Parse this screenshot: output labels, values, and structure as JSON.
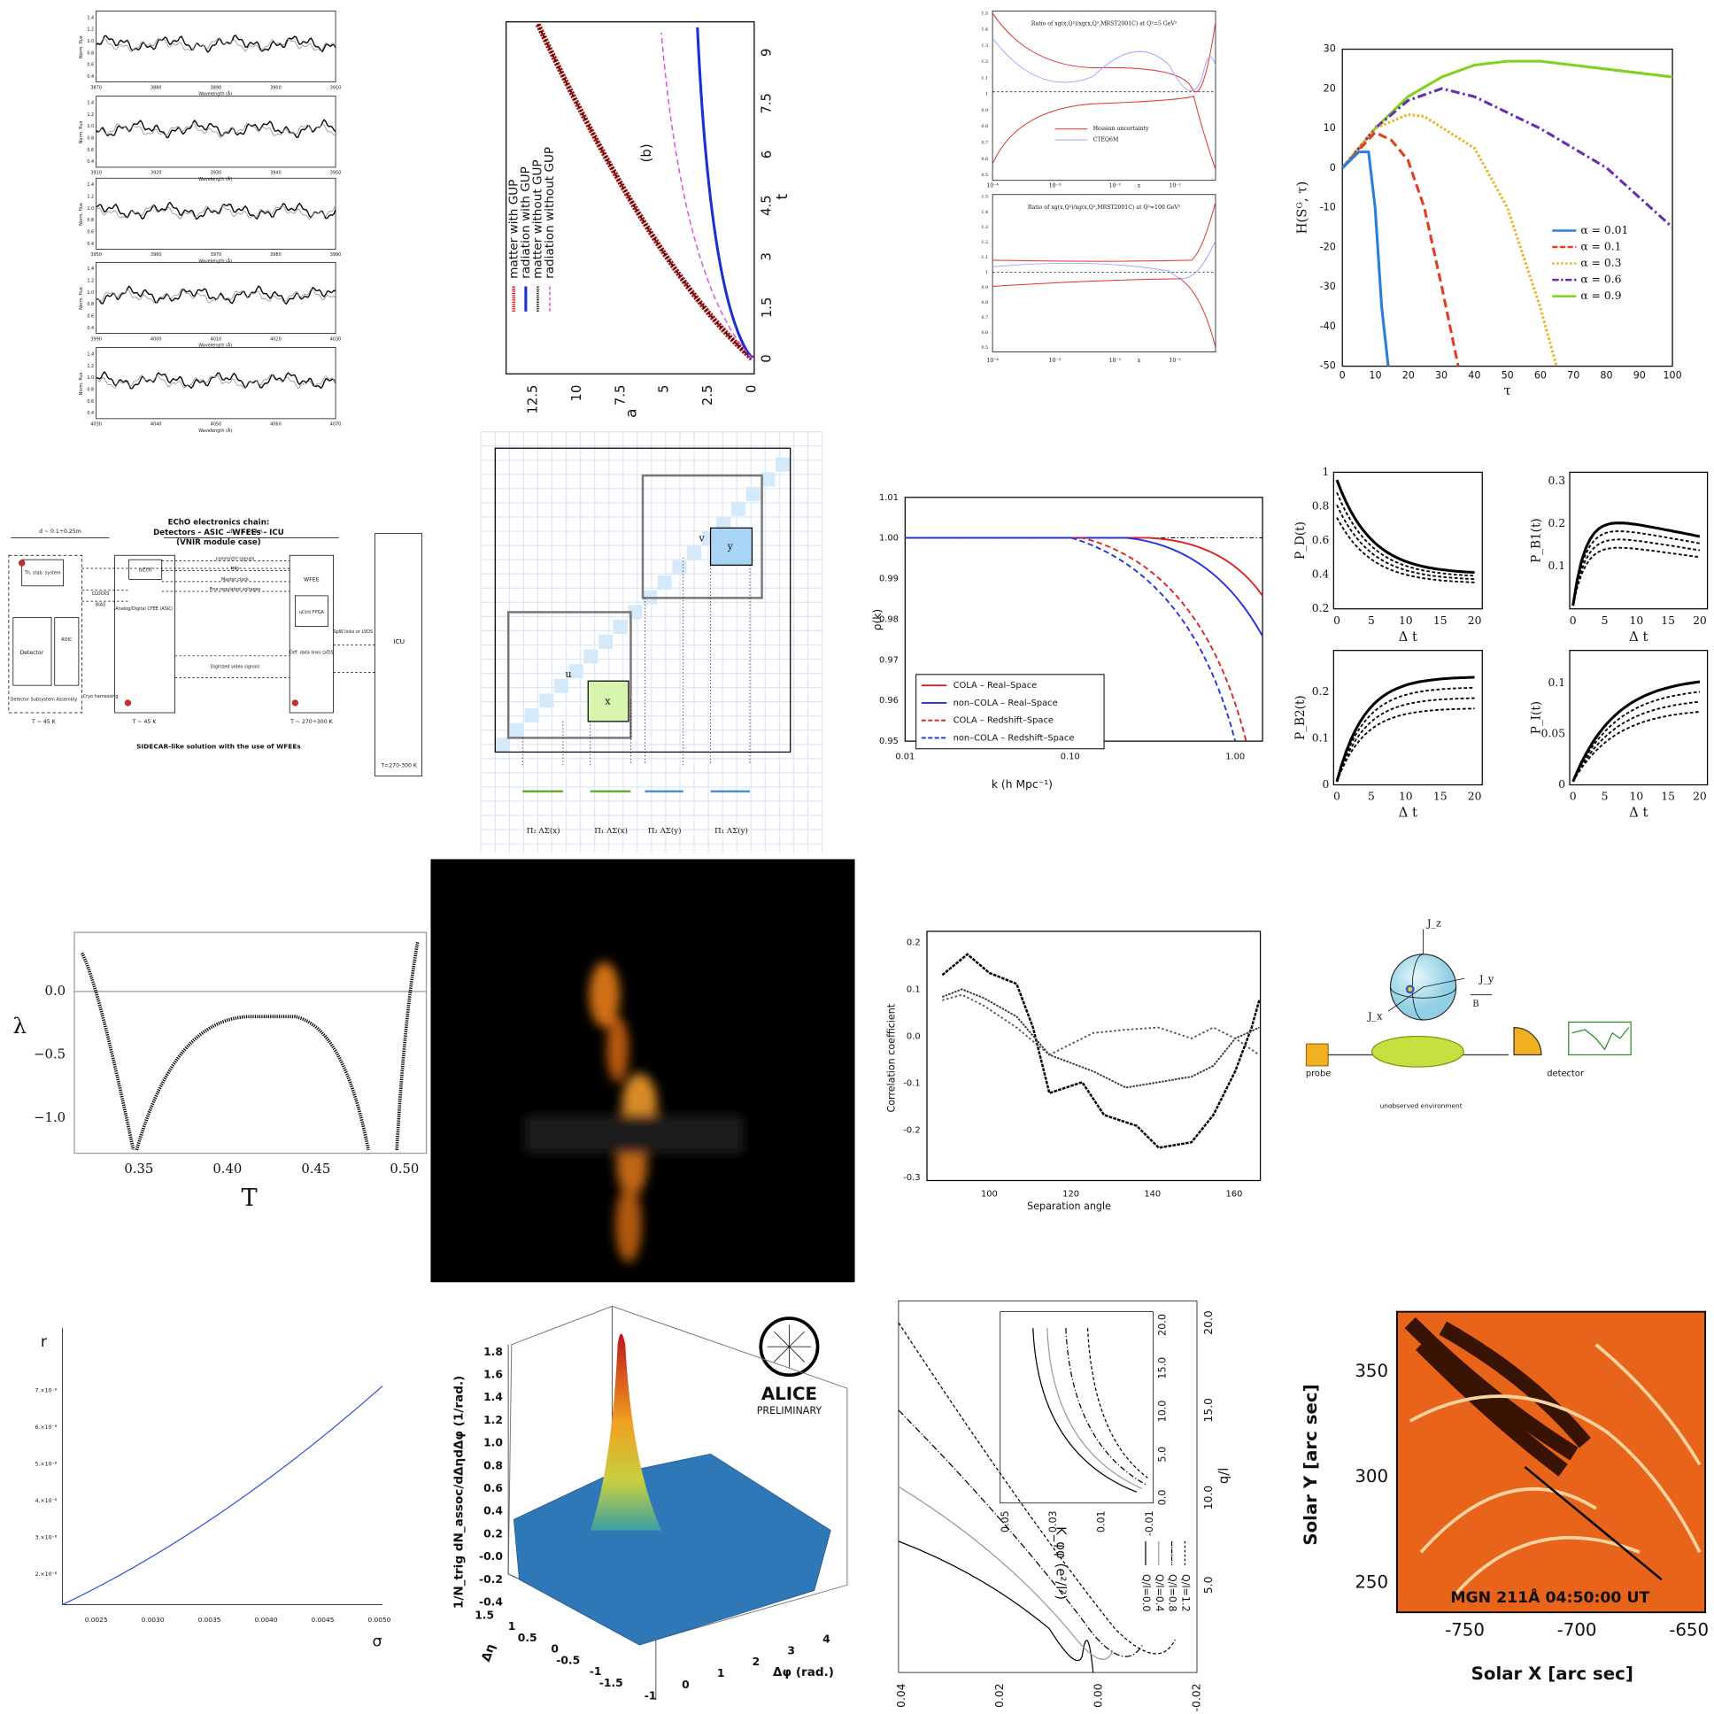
{
  "spectra": {
    "y_label": "Norm. flux",
    "x_label": "Wavelength (Å)",
    "yticks": [
      "0.4",
      "0.6",
      "0.8",
      "1.0",
      "1.2",
      "1.4"
    ],
    "xticks": [
      [
        "3870",
        "3880",
        "3890",
        "3900",
        "3910"
      ],
      [
        "3910",
        "3920",
        "3930",
        "3940",
        "3950"
      ],
      [
        "3950",
        "3960",
        "3970",
        "3980",
        "3990"
      ],
      [
        "3990",
        "4000",
        "4010",
        "4020",
        "4030"
      ],
      [
        "4030",
        "4040",
        "4050",
        "4060",
        "4070"
      ]
    ]
  },
  "gup": {
    "label": "(b)",
    "x_label": "a",
    "y_label": "t",
    "xticks": [
      "12.5",
      "10",
      "7.5",
      "5",
      "2.5",
      "0"
    ],
    "yticks": [
      "0",
      "1.5",
      "3",
      "4.5",
      "6",
      "7.5",
      "9"
    ],
    "legend": [
      "matter with GUP",
      "radiation with GUP",
      "matter without GUP",
      "radiation without GUP"
    ]
  },
  "ratio": {
    "titles": [
      "Ratio of xg(x,Q²)/xg(x,Q²,MRST2001C) at Q²=5 GeV²",
      "Ratio of xg(x,Q²)/xg(x,Q²,MRST2001C) at Q²=100 GeV²"
    ],
    "legend": [
      "Hessian uncertainty",
      "CTEQ6M"
    ],
    "yticks": [
      "0.5",
      "0.6",
      "0.7",
      "0.8",
      "0.9",
      "1",
      "1.1",
      "1.2",
      "1.3",
      "1.4",
      "1.5"
    ],
    "xticks": [
      "10⁻⁴",
      "10⁻³",
      "10⁻²",
      "10⁻¹"
    ],
    "x_label": "x"
  },
  "entropy": {
    "y_label": "H(Sᴳ, τ)",
    "x_label": "τ",
    "xticks": [
      "0",
      "10",
      "20",
      "30",
      "40",
      "50",
      "60",
      "70",
      "80",
      "90",
      "100"
    ],
    "yticks": [
      "30",
      "20",
      "10",
      "0",
      "-10",
      "-20",
      "-30",
      "-40",
      "-50"
    ],
    "legend": [
      "α = 0.01",
      "α = 0.1",
      "α = 0.3",
      "α = 0.6",
      "α = 0.9"
    ]
  },
  "echo": {
    "labels": [
      "EChO electronics chain:",
      "Detectors - ASIC - WFEEs - ICU",
      "(VNIR module case)",
      "d ~ 0.1÷0.25m",
      "d ~ 2.5÷3m",
      "Th. stab. system",
      "Detector",
      "ROIC",
      "CLOCKS",
      "BIAS",
      "uCtrl",
      "Analog/Digital CFEE (ASIC)",
      "comm/ctrl signals",
      "HKs",
      "Master clock",
      "Fine regulated voltages",
      "Digitized video signals",
      "WFEE",
      "uCtrl/ FPGA",
      "Diff. data links LVDS",
      "SpW links or LVDS",
      "ICU",
      "Detector Subsystem Assembly",
      "Cryo harnessing",
      "T ~ 45 K",
      "T ~ 45 K",
      "T ~ 270÷300 K",
      "SIDECAR-like solution with the use of WFEEs",
      "T=270-300 K"
    ]
  },
  "grid_diagram": {
    "nodes": [
      "x",
      "y",
      "u",
      "v"
    ],
    "labels": [
      "Π₂ ΛΣ(x)",
      "Π₁ ΛΣ(x)",
      "Π₂ ΛΣ(y)",
      "Π₁ ΛΣ(y)"
    ]
  },
  "power": {
    "y_label": "ρ(k)",
    "x_label": "k (h Mpc⁻¹)",
    "yticks": [
      "1.01",
      "1.00",
      "0.99",
      "0.98",
      "0.97",
      "0.96",
      "0.95"
    ],
    "xticks": [
      "0.01",
      "0.10",
      "1.00"
    ],
    "legend": [
      "COLA – Real–Space",
      "non–COLA – Real–Space",
      "COLA – Redshift–Space",
      "non–COLA – Redshift–Space"
    ]
  },
  "probabilities": {
    "x_label": "Δ t",
    "xticks": [
      "0",
      "5",
      "10",
      "15",
      "20"
    ],
    "panels": [
      {
        "y_label": "P_D(t)",
        "yticks": [
          "1",
          "0.8",
          "0.6",
          "0.4",
          "0.2"
        ]
      },
      {
        "y_label": "P_B1(t)",
        "yticks": [
          "0.3",
          "0.2",
          "0.1"
        ]
      },
      {
        "y_label": "P_B2(t)",
        "yticks": [
          "0.2",
          "0.1",
          "0"
        ]
      },
      {
        "y_label": "P_I(t)",
        "yticks": [
          "0.1",
          "0.05",
          "0"
        ]
      }
    ]
  },
  "lambda": {
    "y_label": "λ",
    "x_label": "T",
    "yticks": [
      "0.0",
      "−0.5",
      "−1.0"
    ],
    "xticks": [
      "0.35",
      "0.40",
      "0.45",
      "0.50"
    ]
  },
  "correlation": {
    "y_label": "Correlation coefficient",
    "x_label": "Separation angle",
    "yticks": [
      "0.2",
      "0.1",
      "0.0",
      "-0.1",
      "-0.2",
      "-0.3"
    ],
    "xticks": [
      "100",
      "120",
      "140",
      "160"
    ]
  },
  "measurement": {
    "labels": [
      "J_z",
      "J_y",
      "J_x",
      "B",
      "probe",
      "unobserved environment",
      "detector"
    ]
  },
  "r_sigma": {
    "y_label": "r",
    "x_label": "σ",
    "yticks": [
      "7.×10⁻⁸",
      "6.×10⁻⁸",
      "5.×10⁻⁸",
      "4.×10⁻⁸",
      "3.×10⁻⁸",
      "2.×10⁻⁸"
    ],
    "xticks": [
      "0.0025",
      "0.0030",
      "0.0035",
      "0.0040",
      "0.0045",
      "0.0050"
    ]
  },
  "alice": {
    "logo": "ALICE",
    "tag": "PRELIMINARY",
    "z_label": "1/N_trig dN_assoc/dΔηdΔφ (1/rad.)",
    "zticks": [
      "1.8",
      "1.6",
      "1.4",
      "1.2",
      "1.0",
      "0.8",
      "0.6",
      "0.4",
      "0.2",
      "-0.0",
      "-0.2",
      "-0.4"
    ],
    "eta_label": "Δη",
    "eta_ticks": [
      "1.5",
      "1",
      "0.5",
      "0",
      "-0.5",
      "-1",
      "-1.5"
    ],
    "phi_label": "Δφ (rad.)",
    "phi_ticks": [
      "-1",
      "0",
      "1",
      "2",
      "3",
      "4"
    ]
  },
  "kphi": {
    "x_label": "q/l",
    "y_label": "K_φφ (e²/l²)",
    "legend": [
      "Q/l=0.0",
      "Q/l=0.4",
      "Q/l=0.8",
      "Q/l=1.2"
    ],
    "bottom_ticks": [
      "0.04",
      "0.02",
      "0.00",
      "-0.02"
    ],
    "right_ticks": [
      "20.0",
      "15.0",
      "10.0",
      "5.0"
    ],
    "inset_bottom_ticks": [
      "0.05",
      "0.03",
      "0.01",
      "-0.01"
    ],
    "inset_right_ticks": [
      "20.0",
      "15.0",
      "10.0",
      "5.0",
      "0.0"
    ]
  },
  "solar": {
    "y_label": "Solar Y [arc sec]",
    "x_label": "Solar X [arc sec]",
    "caption": "MGN 211Å  04:50:00 UT",
    "yticks": [
      "350",
      "300",
      "250"
    ],
    "xticks": [
      "-750",
      "-700",
      "-650"
    ]
  }
}
